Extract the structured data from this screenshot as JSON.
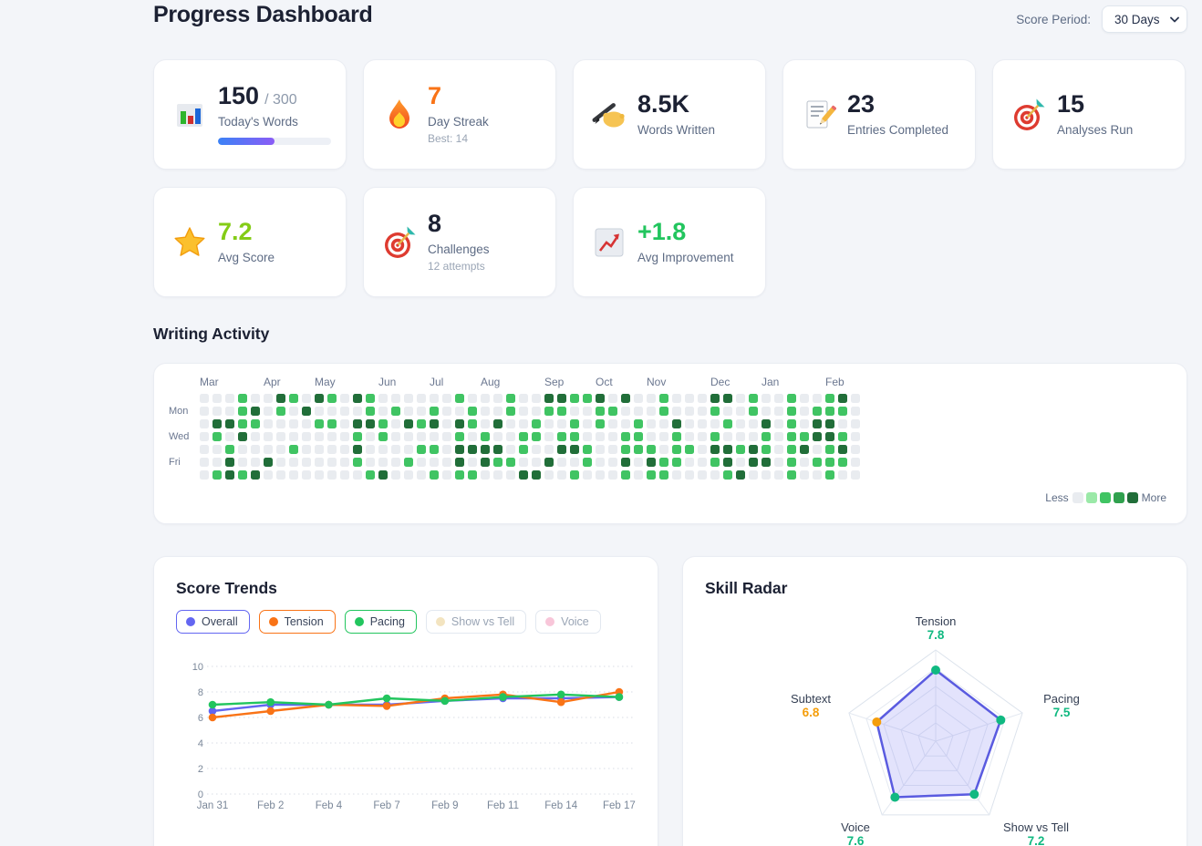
{
  "header": {
    "title": "Progress Dashboard",
    "score_period_label": "Score Period:",
    "score_period_value": "30 Days"
  },
  "stats": [
    {
      "icon": "bar-chart",
      "value": "150",
      "suffix": "/ 300",
      "label": "Today's Words",
      "progress_pct": 50
    },
    {
      "icon": "flame",
      "value": "7",
      "label": "Day Streak",
      "sublabel": "Best: 14",
      "value_color": "#f97316"
    },
    {
      "icon": "writing-hand",
      "value": "8.5K",
      "label": "Words Written"
    },
    {
      "icon": "memo",
      "value": "23",
      "label": "Entries Completed"
    },
    {
      "icon": "dart",
      "value": "15",
      "label": "Analyses Run"
    },
    {
      "icon": "star",
      "value": "7.2",
      "label": "Avg Score",
      "value_color": "#84cc16"
    },
    {
      "icon": "dart",
      "value": "8",
      "label": "Challenges",
      "sublabel": "12 attempts"
    },
    {
      "icon": "chart-up",
      "value": "+1.8",
      "label": "Avg Improvement",
      "value_color": "#22c55e"
    }
  ],
  "activity": {
    "title": "Writing Activity",
    "months": [
      {
        "label": "Mar",
        "col": 0
      },
      {
        "label": "Apr",
        "col": 5
      },
      {
        "label": "May",
        "col": 9
      },
      {
        "label": "Jun",
        "col": 14
      },
      {
        "label": "Jul",
        "col": 18
      },
      {
        "label": "Aug",
        "col": 22
      },
      {
        "label": "Sep",
        "col": 27
      },
      {
        "label": "Oct",
        "col": 31
      },
      {
        "label": "Nov",
        "col": 35
      },
      {
        "label": "Dec",
        "col": 40
      },
      {
        "label": "Jan",
        "col": 44
      },
      {
        "label": "Feb",
        "col": 49
      }
    ],
    "day_labels": [
      {
        "label": "Mon",
        "row": 1
      },
      {
        "label": "Wed",
        "row": 3
      },
      {
        "label": "Fri",
        "row": 5
      }
    ],
    "legend": {
      "less": "Less",
      "more": "More"
    },
    "levels": [
      "#e9ecf0",
      "#9be9a8",
      "#40c463",
      "#30a14e",
      "#216e39"
    ],
    "grid": [
      "0002004204204200000020002004422404002000440200200240",
      "0002402040000202002002002002200220002000200200202220",
      "0442200002204420424042040020020200200400020040204400",
      "0204000000002020000020200220220002200200200020224420",
      "0020000200004000022044440200442002220220442420240240",
      "0040040000002000200040422004002004042200240440202220",
      "0242400000000240002022000440020002022000024000200200"
    ]
  },
  "chart_data": [
    {
      "type": "line",
      "title": "Score Trends",
      "x": [
        "Jan 31",
        "Feb 2",
        "Feb 4",
        "Feb 7",
        "Feb 9",
        "Feb 11",
        "Feb 14",
        "Feb 17"
      ],
      "ylim": [
        0,
        10
      ],
      "yticks": [
        0,
        2,
        4,
        6,
        8,
        10
      ],
      "grid": "dotted-horizontal",
      "legend_position": "top",
      "series": [
        {
          "name": "Overall",
          "color": "#6366f1",
          "active": true,
          "values": [
            6.5,
            7.0,
            7.0,
            7.0,
            7.3,
            7.5,
            7.5,
            7.6
          ]
        },
        {
          "name": "Tension",
          "color": "#f97316",
          "active": true,
          "values": [
            6.0,
            6.5,
            7.0,
            6.9,
            7.5,
            7.8,
            7.2,
            8.0
          ]
        },
        {
          "name": "Pacing",
          "color": "#22c55e",
          "active": true,
          "values": [
            7.0,
            7.2,
            7.0,
            7.5,
            7.3,
            7.6,
            7.8,
            7.6
          ]
        },
        {
          "name": "Show vs Tell",
          "color": "#f0ddb0",
          "active": false
        },
        {
          "name": "Voice",
          "color": "#f6b8d0",
          "active": false
        }
      ]
    },
    {
      "type": "radar",
      "title": "Skill Radar",
      "max": 10,
      "stroke": "#5a5be0",
      "fill": "rgba(99,102,241,0.18)",
      "axes": [
        {
          "label": "Tension",
          "value": 7.8,
          "value_color": "#10b981"
        },
        {
          "label": "Pacing",
          "value": 7.5,
          "value_color": "#10b981"
        },
        {
          "label": "Show vs Tell",
          "value": 7.2,
          "value_color": "#10b981"
        },
        {
          "label": "Voice",
          "value": 7.6,
          "value_color": "#10b981"
        },
        {
          "label": "Subtext",
          "value": 6.8,
          "value_color": "#f59e0b"
        }
      ]
    }
  ]
}
